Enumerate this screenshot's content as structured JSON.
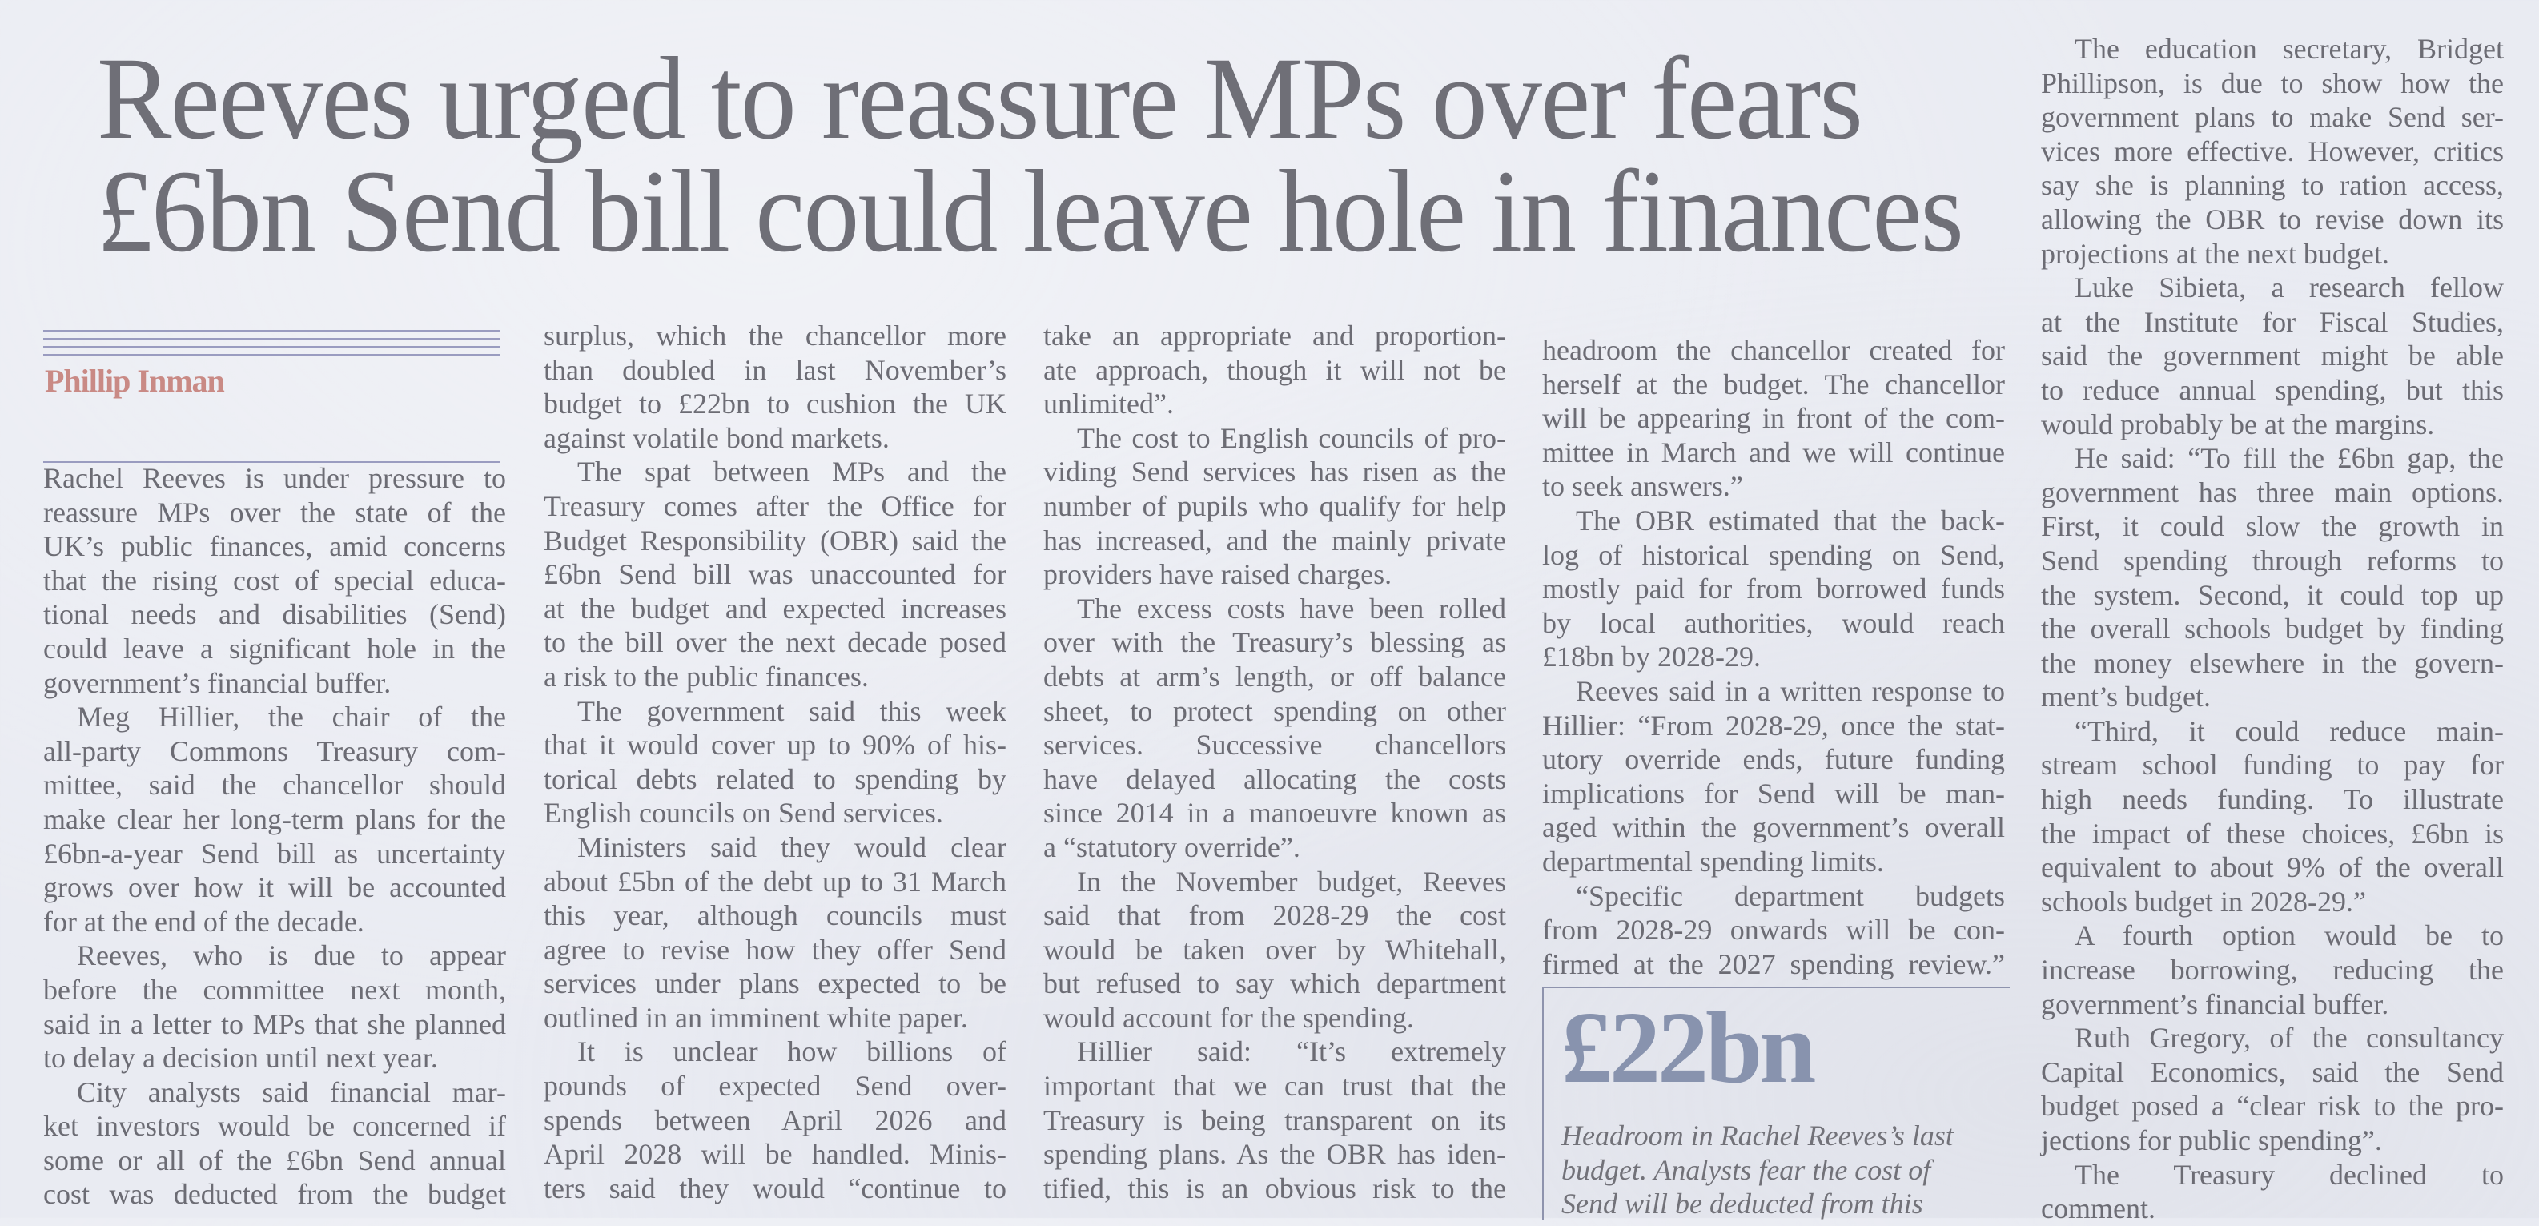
{
  "headline": {
    "lines": [
      "Reeves urged to reassure MPs over fears",
      "£6bn Send bill could leave hole in finances"
    ]
  },
  "byline": "Phillip Inman",
  "columns": [
    {
      "paragraphs": [
        {
          "continued": false,
          "lines": [
            "Rachel Reeves is under pressure to",
            "reassure MPs over the state of the",
            "UK’s public finances, amid concerns",
            "that the rising cost of special educa-",
            "tional needs and disabilities (Send)",
            "could leave a significant hole in the",
            "government’s financial buffer."
          ]
        },
        {
          "continued": false,
          "lines": [
            "Meg Hillier, the chair of the",
            "all-party Commons Treasury com-",
            "mittee, said the chancellor should",
            "make clear her long-term plans for the",
            "£6bn-a-year Send bill as uncertainty",
            "grows over how it will be accounted",
            "for at the end of the decade."
          ]
        },
        {
          "continued": false,
          "lines": [
            "Reeves, who is due to appear",
            "before the committee next month,",
            "said in a letter to MPs that she planned",
            "to delay a decision until next year."
          ]
        },
        {
          "continued": false,
          "lines": [
            "City analysts said financial mar-",
            "ket investors would be concerned if",
            "some or all of the £6bn Send annual",
            "cost was deducted from the budget"
          ]
        }
      ]
    },
    {
      "paragraphs": [
        {
          "continued": true,
          "lines": [
            "surplus, which the chancellor more",
            "than doubled in last November’s",
            "budget to £22bn to cushion the UK",
            "against volatile bond markets."
          ]
        },
        {
          "continued": false,
          "lines": [
            "The spat between MPs and the",
            "Treasury comes after the Office for",
            "Budget Responsibility (OBR) said the",
            "£6bn Send bill was unaccounted for",
            "at the budget and expected increases",
            "to the bill over the next decade posed",
            "a risk to the public finances."
          ]
        },
        {
          "continued": false,
          "lines": [
            "The government said this week",
            "that it would cover up to 90% of his-",
            "torical debts related to spending by",
            "English councils on Send services."
          ]
        },
        {
          "continued": false,
          "lines": [
            "Ministers said they would clear",
            "about £5bn of the debt up to 31 March",
            "this year, although councils must",
            "agree to revise how they offer Send",
            "services under plans expected to be",
            "outlined in an imminent white paper."
          ]
        },
        {
          "continued": false,
          "lines": [
            "It is unclear how billions of",
            "pounds of expected Send over-",
            "spends between April 2026 and",
            "April 2028 will be handled. Minis-",
            "ters said they would “continue to"
          ]
        }
      ]
    },
    {
      "paragraphs": [
        {
          "continued": true,
          "lines": [
            "take an appropriate and proportion-",
            "ate approach, though it will not be",
            "unlimited”."
          ]
        },
        {
          "continued": false,
          "lines": [
            "The cost to English councils of pro-",
            "viding Send services has risen as the",
            "number of pupils who qualify for help",
            "has increased, and the mainly private",
            "providers have raised charges."
          ]
        },
        {
          "continued": false,
          "lines": [
            "The excess costs have been rolled",
            "over with the Treasury’s blessing as",
            "debts at arm’s length, or off balance",
            "sheet, to protect spending on other",
            "services. Successive chancellors",
            "have delayed allocating the costs",
            "since 2014 in a manoeuvre known as",
            "a “statutory override”."
          ]
        },
        {
          "continued": false,
          "lines": [
            "In the November budget, Reeves",
            "said that from 2028-29 the cost",
            "would be taken over by Whitehall,",
            "but refused to say which department",
            "would account for the spending."
          ]
        },
        {
          "continued": false,
          "lines": [
            "Hillier said: “It’s extremely",
            "important that we can trust that the",
            "Treasury is being transparent on its",
            "spending plans. As the OBR has iden-",
            "tified, this is an obvious risk to the"
          ]
        }
      ]
    },
    {
      "paragraphs": [
        {
          "continued": true,
          "lines": [
            "headroom the chancellor created for",
            "herself at the budget. The chancellor",
            "will be appearing in front of the com-",
            "mittee in March and we will continue",
            "to seek answers.”"
          ]
        },
        {
          "continued": false,
          "lines": [
            "The OBR estimated that the back-",
            "log of historical spending on Send,",
            "mostly paid for from borrowed funds",
            "by local authorities, would reach",
            "£18bn by 2028-29."
          ]
        },
        {
          "continued": false,
          "lines": [
            "Reeves said in a written response to",
            "Hillier: “From 2028-29, once the stat-",
            "utory override ends, future funding",
            "implications for Send will be man-",
            "aged within the government’s overall",
            "departmental spending limits."
          ]
        },
        {
          "continued": false,
          "lines": [
            "“Specific department budgets",
            "from 2028-29 onwards will be con-",
            "firmed at the 2027 spending review.”"
          ]
        }
      ]
    },
    {
      "paragraphs": [
        {
          "continued": false,
          "lines": [
            "The education secretary, Bridget",
            "Phillipson, is due to show how the",
            "government plans to make Send ser-",
            "vices more effective. However, critics",
            "say she is planning to ration access,",
            "allowing the OBR to revise down its",
            "projections at the next budget."
          ]
        },
        {
          "continued": false,
          "lines": [
            "Luke Sibieta, a research fellow",
            "at the Institute for Fiscal Studies,",
            "said the government might be able",
            "to reduce annual spending, but this",
            "would probably be at the margins."
          ]
        },
        {
          "continued": false,
          "lines": [
            "He said: “To fill the £6bn gap, the",
            "government has three main options.",
            "First, it could slow the growth in",
            "Send spending through reforms to",
            "the system. Second, it could top up",
            "the overall schools budget by finding",
            "the money elsewhere in the govern-",
            "ment’s budget."
          ]
        },
        {
          "continued": false,
          "lines": [
            "“Third, it could reduce main-",
            "stream school funding to pay for",
            "high needs funding. To illustrate",
            "the impact of these choices, £6bn is",
            "equivalent to about 9% of the overall",
            "schools budget in 2028-29.”"
          ]
        },
        {
          "continued": false,
          "lines": [
            "A fourth option would be to",
            "increase borrowing, reducing the",
            "government’s financial buffer."
          ]
        },
        {
          "continued": false,
          "lines": [
            "Ruth Gregory, of the consultancy",
            "Capital Economics, said the Send",
            "budget posed a “clear risk to the pro-",
            "jections for public spending”."
          ]
        },
        {
          "continued": false,
          "lines": [
            "The Treasury declined to",
            "comment."
          ]
        }
      ]
    }
  ],
  "pull_quote": {
    "figure": "£22bn",
    "caption_lines": [
      "Headroom in Rachel Reeves’s last",
      "budget. Analysts fear the cost of",
      "Send will be deducted from this"
    ]
  },
  "colors": {
    "paper": "#e9ebf2",
    "text": "#6c6c74",
    "byline": "#c98a85",
    "pull_quote_figure": "#8893ae",
    "rules": "#9a9cc0"
  }
}
